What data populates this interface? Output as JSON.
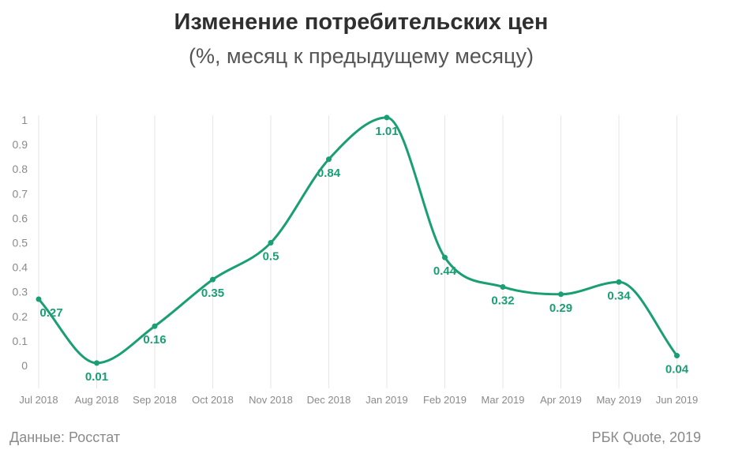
{
  "colors": {
    "series": "#1a9e73",
    "grid": "#e6e6e6",
    "text": "#2f2f2f"
  },
  "footer": {
    "source": "Данные: Росстат",
    "brand": "РБК Quote, 2019"
  },
  "chart_data": {
    "type": "line",
    "title": "Изменение потребительских цен",
    "subtitle": "(%, месяц к предыдущему месяцу)",
    "xlabel": "",
    "ylabel": "",
    "categories": [
      "Jul 2018",
      "Aug 2018",
      "Sep 2018",
      "Oct 2018",
      "Nov 2018",
      "Dec 2018",
      "Jan 2019",
      "Feb 2019",
      "Mar 2019",
      "Apr 2019",
      "May 2019",
      "Jun 2019"
    ],
    "values": [
      0.27,
      0.01,
      0.16,
      0.35,
      0.5,
      0.84,
      1.01,
      0.44,
      0.32,
      0.29,
      0.34,
      0.04
    ],
    "data_labels": [
      "0.27",
      "0.01",
      "0.16",
      "0.35",
      "0.5",
      "0.84",
      "1.01",
      "0.44",
      "0.32",
      "0.29",
      "0.34",
      "0.04"
    ],
    "y_ticks": [
      0,
      0.1,
      0.2,
      0.3,
      0.4,
      0.5,
      0.6,
      0.7,
      0.8,
      0.9,
      1
    ],
    "y_tick_labels": [
      "0",
      "0.1",
      "0.2",
      "0.3",
      "0.4",
      "0.5",
      "0.6",
      "0.7",
      "0.8",
      "0.9",
      "1"
    ],
    "ylim": [
      0,
      1
    ],
    "grid": "vertical",
    "smooth": true
  }
}
